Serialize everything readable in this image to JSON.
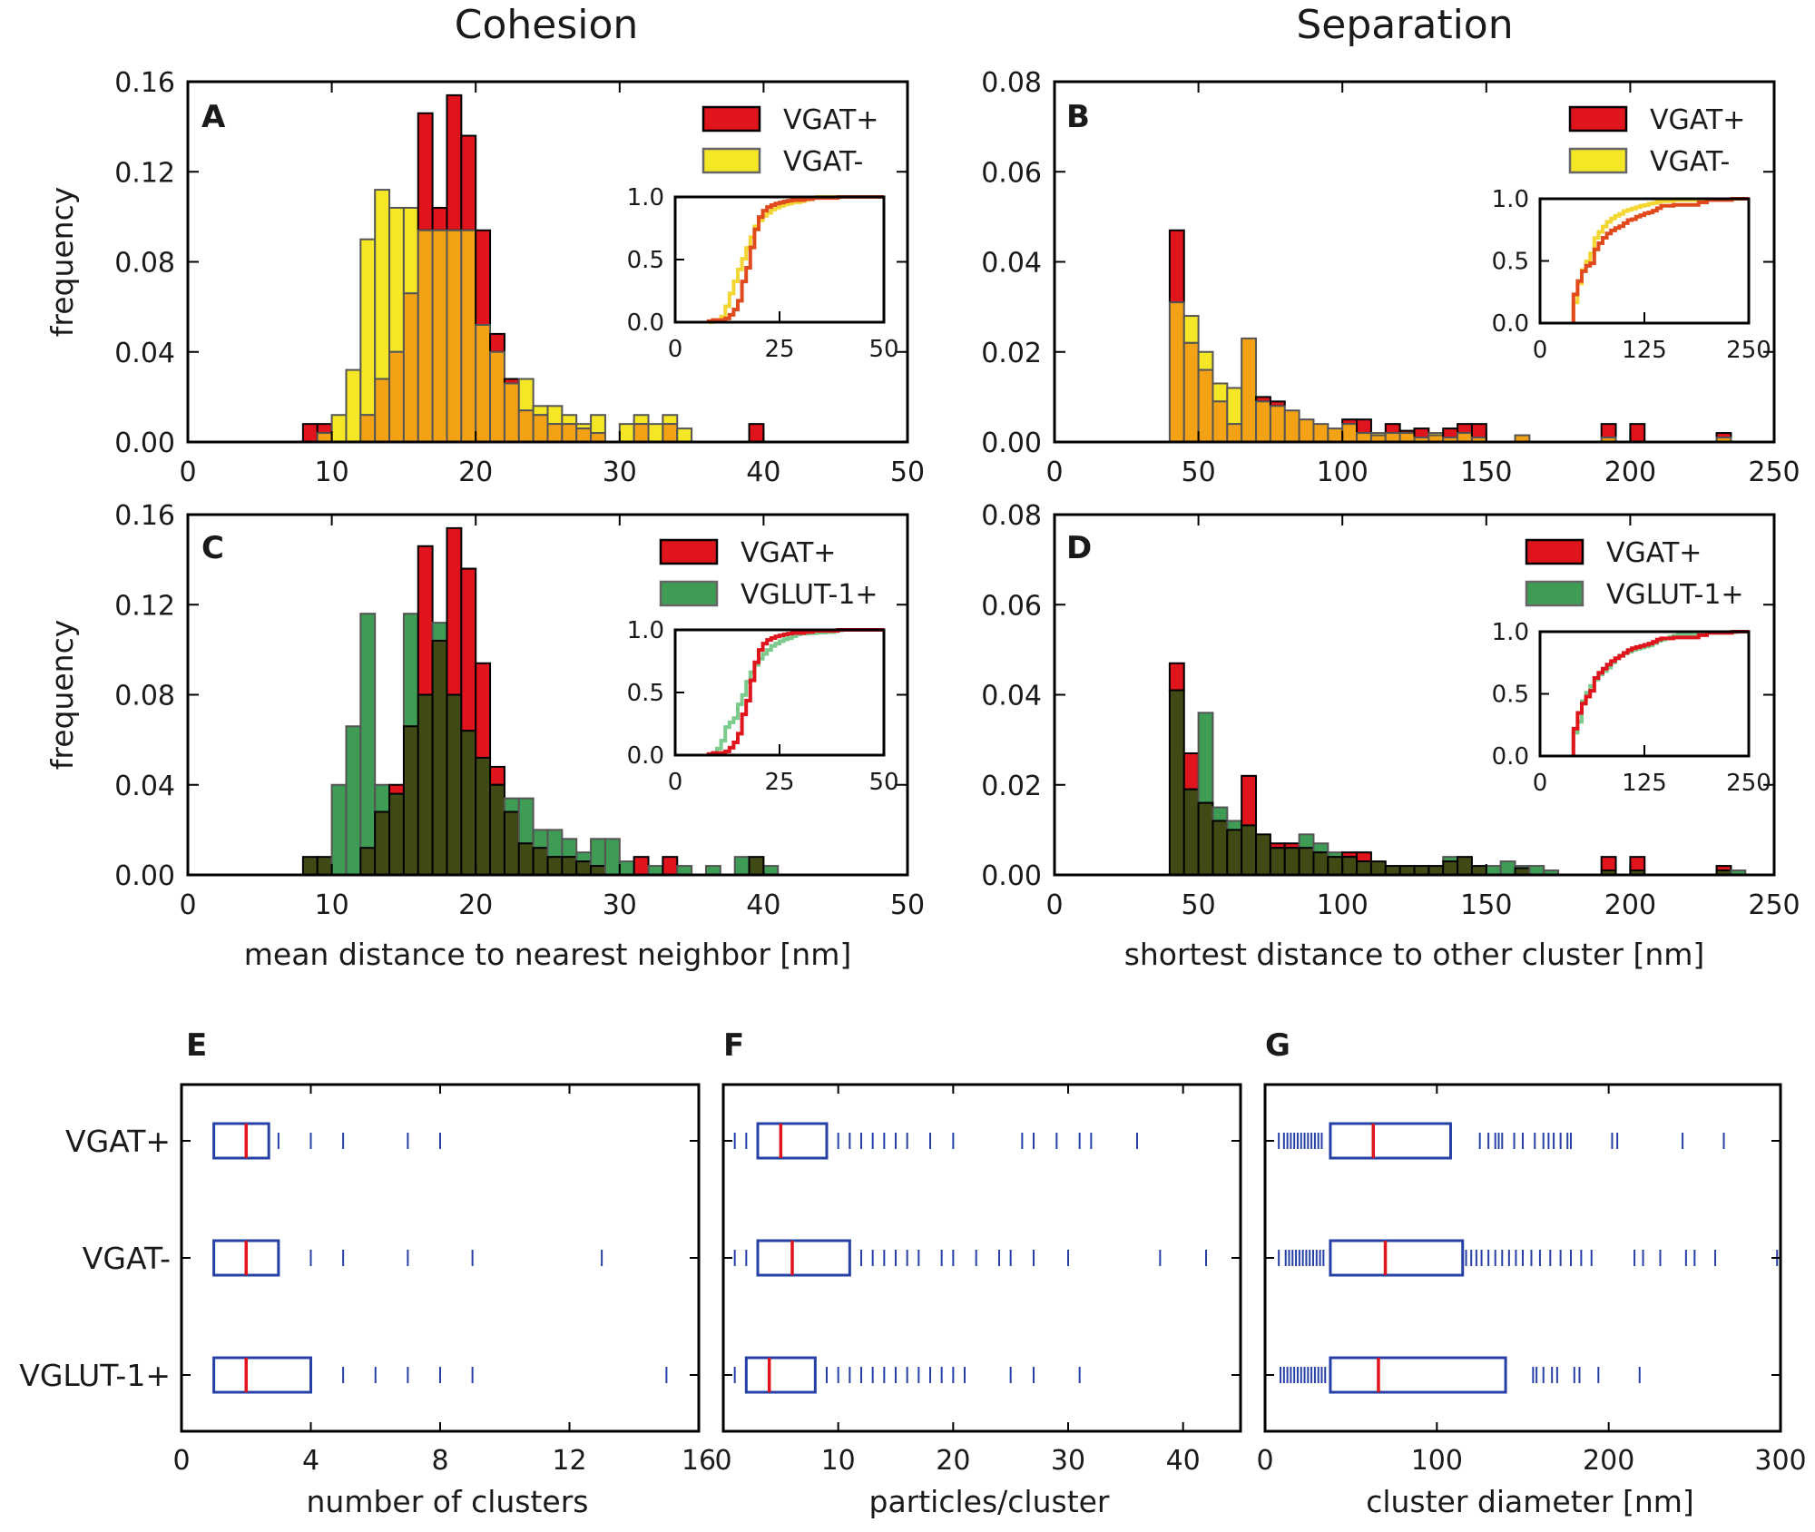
{
  "column_titles": [
    "Cohesion",
    "Separation"
  ],
  "colors": {
    "vgat_plus": "#e0141c",
    "vgat_minus": "#f5e626",
    "overlap_yellow": "#f4a215",
    "vglut": "#3e9c54",
    "overlap_green": "#3f4a15",
    "box": "#2640a6",
    "median": "#e0141c"
  },
  "chart_data": [
    {
      "id": "A",
      "type": "bar",
      "panel_label": "A",
      "xlabel": "",
      "ylabel": "frequency",
      "xlim": [
        0,
        50
      ],
      "ylim": [
        0,
        0.16
      ],
      "xticks": [
        "0",
        "10",
        "20",
        "30",
        "40",
        "50"
      ],
      "yticks": [
        "0.00",
        "0.04",
        "0.08",
        "0.12",
        "0.16"
      ],
      "bin_start": 8,
      "bin_width": 1,
      "series": [
        {
          "name": "VGAT+",
          "values": [
            0.008,
            0.008,
            0,
            0,
            0.012,
            0.028,
            0.04,
            0.066,
            0.146,
            0.104,
            0.154,
            0.136,
            0.094,
            0.048,
            0.028,
            0.014,
            0.012,
            0.008,
            0.008,
            0.006,
            0.004,
            0,
            0,
            0.008,
            0,
            0.008,
            0,
            0,
            0,
            0,
            0,
            0.008
          ]
        },
        {
          "name": "VGAT-",
          "values": [
            0,
            0.004,
            0.012,
            0.032,
            0.09,
            0.112,
            0.104,
            0.104,
            0.094,
            0.094,
            0.094,
            0.094,
            0.052,
            0.04,
            0.026,
            0.028,
            0.016,
            0.016,
            0.012,
            0.008,
            0.012,
            0,
            0.008,
            0.012,
            0.008,
            0.012,
            0.006,
            0,
            0,
            0,
            0,
            0
          ]
        }
      ],
      "legend": [
        "VGAT+",
        "VGAT-"
      ],
      "inset": {
        "xlim": [
          0,
          50
        ],
        "ylim": [
          0,
          1
        ],
        "xticks": [
          "0",
          "25",
          "50"
        ],
        "yticks": [
          "0.0",
          "0.5",
          "1.0"
        ]
      }
    },
    {
      "id": "B",
      "type": "bar",
      "panel_label": "B",
      "xlabel": "",
      "ylabel": "",
      "xlim": [
        0,
        250
      ],
      "ylim": [
        0,
        0.08
      ],
      "xticks": [
        "0",
        "50",
        "100",
        "150",
        "200",
        "250"
      ],
      "yticks": [
        "0.00",
        "0.02",
        "0.04",
        "0.06",
        "0.08"
      ],
      "bin_start": 40,
      "bin_width": 5,
      "series": [
        {
          "name": "VGAT+",
          "values": [
            0.047,
            0.022,
            0.016,
            0.009,
            0.004,
            0.023,
            0.01,
            0.009,
            0.007,
            0.005,
            0.004,
            0.003,
            0.005,
            0.005,
            0.0015,
            0.004,
            0.0025,
            0.003,
            0.0015,
            0.003,
            0.004,
            0.004,
            0,
            0,
            0.0015,
            0,
            0,
            0,
            0,
            0,
            0.004,
            0,
            0.004,
            0,
            0,
            0,
            0,
            0,
            0.002
          ]
        },
        {
          "name": "VGAT-",
          "values": [
            0.031,
            0.028,
            0.02,
            0.013,
            0.012,
            0.023,
            0.009,
            0.008,
            0.007,
            0.005,
            0.004,
            0.003,
            0.004,
            0.002,
            0.002,
            0.002,
            0.002,
            0.001,
            0.002,
            0.001,
            0.002,
            0.001,
            0,
            0,
            0.0015,
            0,
            0,
            0,
            0,
            0,
            0.001,
            0,
            0,
            0,
            0,
            0,
            0,
            0,
            0.001
          ]
        }
      ],
      "legend": [
        "VGAT+",
        "VGAT-"
      ],
      "inset": {
        "xlim": [
          0,
          250
        ],
        "ylim": [
          0,
          1
        ],
        "xticks": [
          "0",
          "125",
          "250"
        ],
        "yticks": [
          "0.0",
          "0.5",
          "1.0"
        ]
      }
    },
    {
      "id": "C",
      "type": "bar",
      "panel_label": "C",
      "xlabel": "mean distance to nearest neighbor [nm]",
      "ylabel": "frequency",
      "xlim": [
        0,
        50
      ],
      "ylim": [
        0,
        0.16
      ],
      "xticks": [
        "0",
        "10",
        "20",
        "30",
        "40",
        "50"
      ],
      "yticks": [
        "0.00",
        "0.04",
        "0.08",
        "0.12",
        "0.16"
      ],
      "bin_start": 8,
      "bin_width": 1,
      "series": [
        {
          "name": "VGAT+",
          "values": [
            0.008,
            0.008,
            0,
            0,
            0.012,
            0.028,
            0.04,
            0.066,
            0.146,
            0.104,
            0.154,
            0.136,
            0.094,
            0.048,
            0.028,
            0.014,
            0.012,
            0.008,
            0.008,
            0.006,
            0.004,
            0,
            0,
            0.008,
            0,
            0.008,
            0,
            0,
            0,
            0,
            0,
            0.008
          ]
        },
        {
          "name": "VGLUT-1+",
          "values": [
            0.008,
            0.008,
            0.04,
            0.066,
            0.116,
            0.04,
            0.036,
            0.116,
            0.08,
            0.112,
            0.08,
            0.064,
            0.052,
            0.04,
            0.034,
            0.034,
            0.02,
            0.02,
            0.016,
            0.01,
            0.016,
            0.016,
            0.006,
            0,
            0.004,
            0,
            0.004,
            0,
            0.004,
            0,
            0.008,
            0.008,
            0.004
          ]
        }
      ],
      "legend": [
        "VGAT+",
        "VGLUT-1+"
      ],
      "inset": {
        "xlim": [
          0,
          50
        ],
        "ylim": [
          0,
          1
        ],
        "xticks": [
          "0",
          "25",
          "50"
        ],
        "yticks": [
          "0.0",
          "0.5",
          "1.0"
        ]
      }
    },
    {
      "id": "D",
      "type": "bar",
      "panel_label": "D",
      "xlabel": "shortest distance to other cluster [nm]",
      "ylabel": "",
      "xlim": [
        0,
        250
      ],
      "ylim": [
        0,
        0.08
      ],
      "xticks": [
        "0",
        "50",
        "100",
        "150",
        "200",
        "250"
      ],
      "yticks": [
        "0.00",
        "0.02",
        "0.04",
        "0.06",
        "0.08"
      ],
      "bin_start": 40,
      "bin_width": 5,
      "series": [
        {
          "name": "VGAT+",
          "values": [
            0.047,
            0.027,
            0.016,
            0.012,
            0.01,
            0.022,
            0.009,
            0.007,
            0.007,
            0.006,
            0.005,
            0.004,
            0.005,
            0.005,
            0.003,
            0.002,
            0.002,
            0.002,
            0.002,
            0.003,
            0.004,
            0.002,
            0,
            0,
            0.0015,
            0,
            0,
            0,
            0,
            0,
            0.004,
            0,
            0.004,
            0,
            0,
            0,
            0,
            0,
            0.002
          ]
        },
        {
          "name": "VGLUT-1+",
          "values": [
            0.041,
            0.019,
            0.036,
            0.015,
            0.012,
            0.011,
            0.009,
            0.006,
            0.006,
            0.009,
            0.007,
            0.005,
            0.004,
            0.003,
            0.003,
            0.002,
            0.002,
            0.002,
            0.002,
            0.004,
            0.004,
            0.002,
            0.002,
            0.003,
            0.002,
            0.002,
            0.001,
            0,
            0,
            0,
            0.001,
            0,
            0.001,
            0,
            0,
            0,
            0,
            0,
            0.001,
            0.001
          ]
        }
      ],
      "legend": [
        "VGAT+",
        "VGLUT-1+"
      ],
      "inset": {
        "xlim": [
          0,
          250
        ],
        "ylim": [
          0,
          1
        ],
        "xticks": [
          "0",
          "125",
          "250"
        ],
        "yticks": [
          "0.0",
          "0.5",
          "1.0"
        ]
      }
    },
    {
      "id": "E",
      "type": "box",
      "panel_label": "E",
      "xlabel": "number of clusters",
      "xlim": [
        0,
        16
      ],
      "xticks": [
        "0",
        "4",
        "8",
        "12",
        "16"
      ],
      "categories": [
        "VGAT+",
        "VGAT-",
        "VGLUT-1+"
      ],
      "boxes": [
        {
          "name": "VGAT+",
          "q1": 1,
          "median": 2,
          "q3": 2.7,
          "points": [
            1,
            3,
            4,
            5,
            7,
            8
          ]
        },
        {
          "name": "VGAT-",
          "q1": 1,
          "median": 2,
          "q3": 3,
          "points": [
            1,
            4,
            5,
            7,
            9,
            13
          ]
        },
        {
          "name": "VGLUT-1+",
          "q1": 1,
          "median": 2,
          "q3": 4,
          "points": [
            1,
            5,
            6,
            7,
            8,
            9,
            15
          ]
        }
      ]
    },
    {
      "id": "F",
      "type": "box",
      "panel_label": "F",
      "xlabel": "particles/cluster",
      "xlim": [
        0,
        45
      ],
      "xticks": [
        "0",
        "10",
        "20",
        "30",
        "40"
      ],
      "categories": [
        "VGAT+",
        "VGAT-",
        "VGLUT-1+"
      ],
      "boxes": [
        {
          "name": "VGAT+",
          "q1": 3,
          "median": 5,
          "q3": 9,
          "points": [
            1,
            2,
            10,
            11,
            12,
            13,
            14,
            15,
            16,
            18,
            20,
            26,
            27,
            29,
            31,
            32,
            36
          ]
        },
        {
          "name": "VGAT-",
          "q1": 3,
          "median": 6,
          "q3": 11,
          "points": [
            1,
            2,
            12,
            13,
            14,
            15,
            16,
            17,
            19,
            20,
            22,
            24,
            25,
            27,
            30,
            38,
            42
          ]
        },
        {
          "name": "VGLUT-1+",
          "q1": 2,
          "median": 4,
          "q3": 8,
          "points": [
            1,
            9,
            10,
            11,
            12,
            13,
            14,
            15,
            16,
            17,
            18,
            19,
            20,
            21,
            25,
            27,
            31
          ]
        }
      ]
    },
    {
      "id": "G",
      "type": "box",
      "panel_label": "G",
      "xlabel": "cluster diameter [nm]",
      "xlim": [
        0,
        300
      ],
      "xticks": [
        "0",
        "100",
        "200",
        "300"
      ],
      "categories": [
        "VGAT+",
        "VGAT-",
        "VGLUT-1+"
      ],
      "boxes": [
        {
          "name": "VGAT+",
          "q1": 38,
          "median": 63,
          "q3": 108,
          "points": [
            8,
            11,
            13,
            15,
            17,
            19,
            21,
            23,
            25,
            27,
            29,
            31,
            33,
            125,
            130,
            134,
            136,
            138,
            145,
            150,
            157,
            162,
            165,
            168,
            172,
            176,
            178,
            202,
            205,
            243,
            267
          ]
        },
        {
          "name": "VGAT-",
          "q1": 38,
          "median": 70,
          "q3": 115,
          "points": [
            8,
            12,
            14,
            16,
            18,
            20,
            22,
            24,
            26,
            28,
            30,
            32,
            34,
            117,
            120,
            123,
            126,
            130,
            134,
            138,
            142,
            146,
            150,
            155,
            160,
            166,
            172,
            178,
            184,
            190,
            215,
            220,
            230,
            245,
            250,
            262,
            298
          ]
        },
        {
          "name": "VGLUT-1+",
          "q1": 38,
          "median": 66,
          "q3": 140,
          "points": [
            9,
            11,
            13,
            15,
            17,
            19,
            21,
            23,
            25,
            27,
            29,
            31,
            33,
            35,
            156,
            158,
            162,
            167,
            170,
            180,
            183,
            194,
            218
          ]
        }
      ]
    }
  ]
}
